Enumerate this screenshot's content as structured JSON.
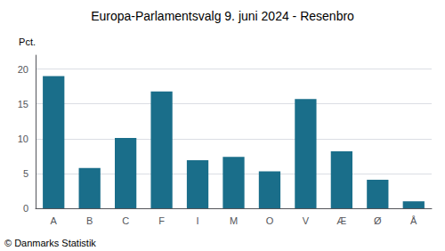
{
  "chart_data": {
    "type": "bar",
    "title": "Europa-Parlamentsvalg 9. juni 2024 - Resenbro",
    "ylabel": "Pct.",
    "annotations": [
      "© Danmarks Statistik"
    ],
    "categories": [
      "A",
      "B",
      "C",
      "F",
      "I",
      "M",
      "O",
      "V",
      "Æ",
      "Ø",
      "Å"
    ],
    "values": [
      19.0,
      5.8,
      10.1,
      16.8,
      6.9,
      7.4,
      5.3,
      15.7,
      8.2,
      4.1,
      1.0
    ],
    "color": "#1a6e8a",
    "ylim": [
      0,
      22
    ],
    "yticks": [
      0,
      5,
      10,
      15,
      20
    ],
    "grid": true
  }
}
